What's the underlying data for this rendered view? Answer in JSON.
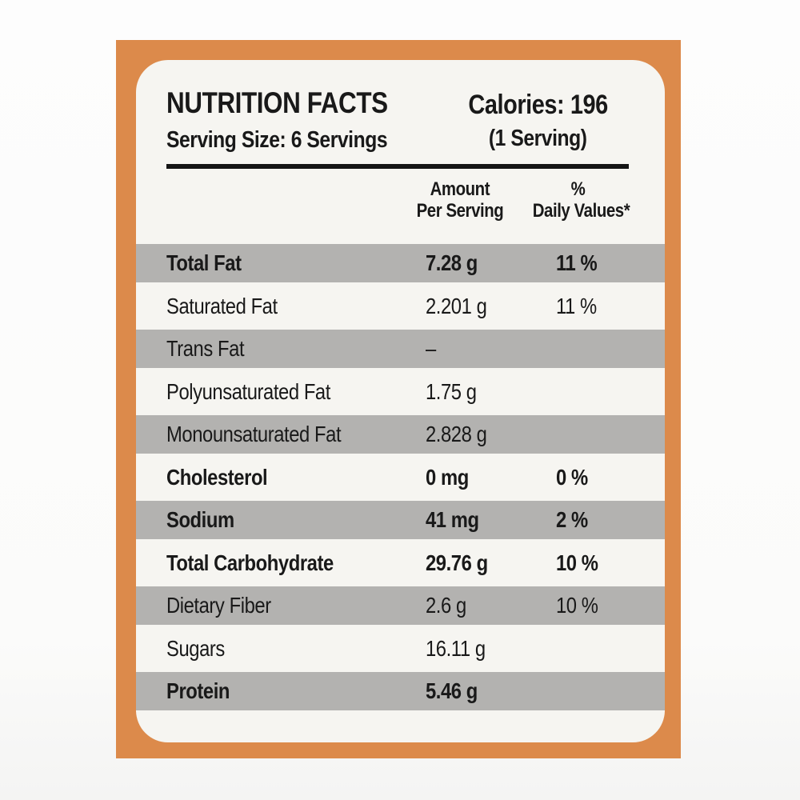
{
  "label": {
    "title": "NUTRITION FACTS",
    "serving_size": "Serving Size: 6 Servings",
    "calories": "Calories: 196",
    "calories_note": "(1 Serving)",
    "columns": {
      "amount_line1": "Amount",
      "amount_line2": "Per Serving",
      "dv_line1": "%",
      "dv_line2": "Daily Values*"
    },
    "rows": [
      {
        "name": "Total Fat",
        "amount": "7.28 g",
        "dv": "11 %"
      },
      {
        "name": "Saturated Fat",
        "amount": "2.201 g",
        "dv": "11 %"
      },
      {
        "name": "Trans Fat",
        "amount": "–",
        "dv": ""
      },
      {
        "name": "Polyunsaturated Fat",
        "amount": "1.75 g",
        "dv": ""
      },
      {
        "name": "Monounsaturated Fat",
        "amount": "2.828 g",
        "dv": ""
      },
      {
        "name": "Cholesterol",
        "amount": "0 mg",
        "dv": "0 %"
      },
      {
        "name": "Sodium",
        "amount": "41 mg",
        "dv": "2 %"
      },
      {
        "name": "Total Carbohydrate",
        "amount": "29.76 g",
        "dv": "10 %"
      },
      {
        "name": "Dietary Fiber",
        "amount": "2.6 g",
        "dv": "10 %"
      },
      {
        "name": "Sugars",
        "amount": "16.11 g",
        "dv": ""
      },
      {
        "name": "Protein",
        "amount": "5.46 g",
        "dv": ""
      }
    ],
    "colors": {
      "package_orange": "#dc8a4b",
      "stripe_gray": "#b3b2b0",
      "card_white": "#f6f5f1",
      "text_black": "#191919"
    }
  }
}
